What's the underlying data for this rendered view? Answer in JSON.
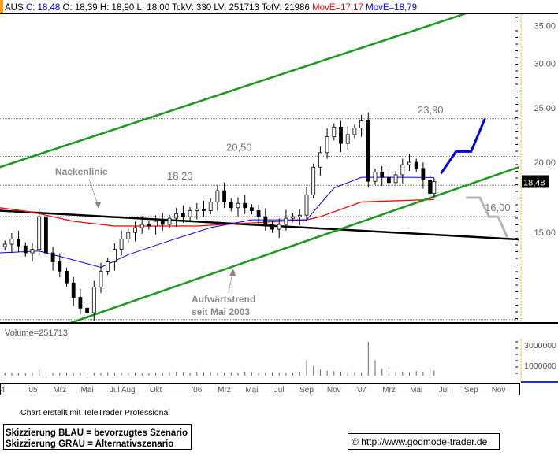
{
  "header": {
    "symbol": "AUS",
    "c_label": "C: 18,48",
    "ohlc_text": "O: 18,39 H: 18,90 L: 18,00 TckV: 330 LV: 251713 TotV: 21986",
    "move_red": "MovE=17,17",
    "move_blue": "MovE=18,79"
  },
  "colors": {
    "accent": "#f7a11a",
    "up_channel": "#1a9a1a",
    "neckline": "#000000",
    "ma_long": "#ff0000",
    "ma_short": "#0000ff",
    "scenario_blue": "#0000ee",
    "scenario_gray": "#b4b4b4"
  },
  "last_price_badge": "18,48",
  "volume_label": "Volume=251713",
  "footer": {
    "credit": "Chart erstellt mit TeleTrader Professional",
    "legend_line1": "Skizzierung BLAU = bevorzugtes Szenario",
    "legend_line2": "Skizzierung GRAU = Alternativszenario",
    "copyright": "© http://www.godmode-trader.de"
  },
  "chart_data": {
    "type": "candlestick",
    "y_scale": "log",
    "ylim": [
      10.3,
      36.8
    ],
    "y_ticks": [
      "35,00",
      "30,00",
      "25,00",
      "20,00",
      "15,00"
    ],
    "y_tick_values": [
      35,
      30,
      25,
      20,
      15
    ],
    "x_ticks": [
      {
        "label": "'04",
        "date": "2004-10-20"
      },
      {
        "label": "'05",
        "date": "2005-01-01"
      },
      {
        "label": "Mrz",
        "date": "2005-03-01"
      },
      {
        "label": "Mai",
        "date": "2005-05-01"
      },
      {
        "label": "Jul",
        "date": "2005-07-01"
      },
      {
        "label": "Aug",
        "date": "2005-08-01"
      },
      {
        "label": "Okt",
        "date": "2005-10-01"
      },
      {
        "label": "'06",
        "date": "2006-01-01"
      },
      {
        "label": "Mrz",
        "date": "2006-03-01"
      },
      {
        "label": "Mai",
        "date": "2006-05-01"
      },
      {
        "label": "Jul",
        "date": "2006-07-01"
      },
      {
        "label": "Sep",
        "date": "2006-09-01"
      },
      {
        "label": "Nov",
        "date": "2006-11-01"
      },
      {
        "label": "'07",
        "date": "2007-01-01"
      },
      {
        "label": "Mrz",
        "date": "2007-03-01"
      },
      {
        "label": "Mai",
        "date": "2007-05-01"
      },
      {
        "label": "Jul",
        "date": "2007-07-01"
      },
      {
        "label": "Sep",
        "date": "2007-09-01"
      },
      {
        "label": "Nov",
        "date": "2007-11-01"
      }
    ],
    "closes": [
      [
        "2004-11-01",
        14.3
      ],
      [
        "2004-11-16",
        14.6
      ],
      [
        "2004-12-01",
        14.2
      ],
      [
        "2004-12-16",
        13.8
      ],
      [
        "2005-01-01",
        14.0
      ],
      [
        "2005-01-16",
        16.0
      ],
      [
        "2005-02-01",
        13.8
      ],
      [
        "2005-02-16",
        13.3
      ],
      [
        "2005-03-01",
        12.8
      ],
      [
        "2005-03-16",
        12.2
      ],
      [
        "2005-04-01",
        11.5
      ],
      [
        "2005-04-16",
        11.0
      ],
      [
        "2005-05-01",
        10.8
      ],
      [
        "2005-05-16",
        12.0
      ],
      [
        "2005-06-01",
        12.8
      ],
      [
        "2005-06-16",
        13.3
      ],
      [
        "2005-07-01",
        14.0
      ],
      [
        "2005-07-16",
        14.6
      ],
      [
        "2005-08-01",
        15.0
      ],
      [
        "2005-08-16",
        15.3
      ],
      [
        "2005-09-01",
        15.5
      ],
      [
        "2005-09-16",
        15.4
      ],
      [
        "2005-10-01",
        15.7
      ],
      [
        "2005-10-16",
        15.5
      ],
      [
        "2005-11-01",
        15.9
      ],
      [
        "2005-11-16",
        16.2
      ],
      [
        "2005-12-01",
        16.0
      ],
      [
        "2005-12-16",
        16.4
      ],
      [
        "2006-01-01",
        16.5
      ],
      [
        "2006-01-16",
        16.4
      ],
      [
        "2006-02-01",
        17.0
      ],
      [
        "2006-02-16",
        17.8
      ],
      [
        "2006-03-01",
        17.0
      ],
      [
        "2006-03-16",
        16.6
      ],
      [
        "2006-04-01",
        16.9
      ],
      [
        "2006-04-16",
        16.6
      ],
      [
        "2006-05-01",
        16.4
      ],
      [
        "2006-05-16",
        16.0
      ],
      [
        "2006-06-01",
        15.5
      ],
      [
        "2006-06-16",
        15.2
      ],
      [
        "2006-07-01",
        15.5
      ],
      [
        "2006-07-16",
        15.9
      ],
      [
        "2006-08-01",
        16.0
      ],
      [
        "2006-08-16",
        16.1
      ],
      [
        "2006-09-01",
        17.5
      ],
      [
        "2006-09-16",
        19.6
      ],
      [
        "2006-10-01",
        20.8
      ],
      [
        "2006-10-16",
        22.2
      ],
      [
        "2006-11-01",
        23.1
      ],
      [
        "2006-11-16",
        21.6
      ],
      [
        "2006-12-01",
        22.4
      ],
      [
        "2006-12-16",
        23.0
      ],
      [
        "2007-01-01",
        23.7
      ],
      [
        "2007-01-16",
        18.5
      ],
      [
        "2007-02-01",
        19.2
      ],
      [
        "2007-02-16",
        18.8
      ],
      [
        "2007-03-01",
        18.4
      ],
      [
        "2007-03-16",
        19.0
      ],
      [
        "2007-04-01",
        19.8
      ],
      [
        "2007-04-16",
        20.0
      ],
      [
        "2007-05-01",
        19.5
      ],
      [
        "2007-05-16",
        18.6
      ],
      [
        "2007-06-01",
        17.6
      ],
      [
        "2007-06-10",
        18.48
      ]
    ],
    "volume": [
      300000,
      300000,
      250000,
      250000,
      300000,
      600000,
      350000,
      300000,
      300000,
      300000,
      250000,
      300000,
      300000,
      300000,
      300000,
      350000,
      300000,
      300000,
      350000,
      300000,
      250000,
      250000,
      300000,
      300000,
      350000,
      400000,
      350000,
      300000,
      400000,
      350000,
      350000,
      300000,
      300000,
      350000,
      300000,
      400000,
      350000,
      300000,
      300000,
      350000,
      300000,
      300000,
      300000,
      400000,
      1500000,
      900000,
      600000,
      500000,
      450000,
      400000,
      400000,
      350000,
      300000,
      3300000,
      1500000,
      700000,
      500000,
      400000,
      400000,
      350000,
      450000,
      400000,
      600000,
      500000
    ],
    "volume_ticks": [
      "3000000",
      "1000000"
    ],
    "volume_tick_values": [
      3000000,
      1000000
    ],
    "ma_long": [
      [
        "2004-10-20",
        16.6
      ],
      [
        "2005-01-01",
        16.3
      ],
      [
        "2005-04-01",
        15.7
      ],
      [
        "2005-07-01",
        15.4
      ],
      [
        "2006-01-01",
        15.4
      ],
      [
        "2006-09-01",
        15.8
      ],
      [
        "2006-10-01",
        16.0
      ],
      [
        "2007-01-01",
        17.0
      ],
      [
        "2007-06-10",
        17.17
      ]
    ],
    "ma_short": [
      [
        "2004-10-20",
        13.8
      ],
      [
        "2005-01-16",
        13.9
      ],
      [
        "2005-04-01",
        13.4
      ],
      [
        "2005-06-01",
        13.0
      ],
      [
        "2005-08-01",
        13.7
      ],
      [
        "2005-11-01",
        14.5
      ],
      [
        "2006-02-01",
        15.3
      ],
      [
        "2006-05-01",
        15.8
      ],
      [
        "2006-09-01",
        15.8
      ],
      [
        "2006-11-01",
        18.0
      ],
      [
        "2007-01-01",
        18.8
      ],
      [
        "2007-04-01",
        18.8
      ],
      [
        "2007-06-10",
        18.79
      ]
    ],
    "horizontal_levels": [
      {
        "value": 23.9,
        "label": "23,90"
      },
      {
        "value": 20.5,
        "label": "20,50"
      },
      {
        "value": 18.2,
        "label": "18,20"
      },
      {
        "value": 16.0,
        "label": "16,00"
      },
      {
        "value": 10.5,
        "label": ""
      }
    ],
    "trendlines": [
      {
        "name": "upper-channel",
        "points": [
          [
            "2004-10-20",
            19.6
          ],
          [
            "2007-08-20",
            36.8
          ]
        ]
      },
      {
        "name": "uptrend",
        "label": "Aufwärtstrend seit Mai 2003",
        "points": [
          [
            "2005-03-16",
            10.3
          ],
          [
            "2007-12-15",
            19.6
          ]
        ]
      },
      {
        "name": "neckline",
        "label": "Nackenlinie",
        "points": [
          [
            "2004-10-20",
            16.4
          ],
          [
            "2007-12-15",
            14.58
          ]
        ]
      }
    ],
    "scenario_blue": [
      [
        "2007-06-25",
        19.1
      ],
      [
        "2007-07-28",
        20.9
      ],
      [
        "2007-09-01",
        20.9
      ],
      [
        "2007-10-01",
        23.9
      ]
    ],
    "scenario_gray": [
      [
        "2007-08-20",
        17.3
      ],
      [
        "2007-09-20",
        17.3
      ],
      [
        "2007-10-10",
        16.0
      ],
      [
        "2007-10-30",
        16.0
      ],
      [
        "2007-11-20",
        14.7
      ]
    ]
  }
}
